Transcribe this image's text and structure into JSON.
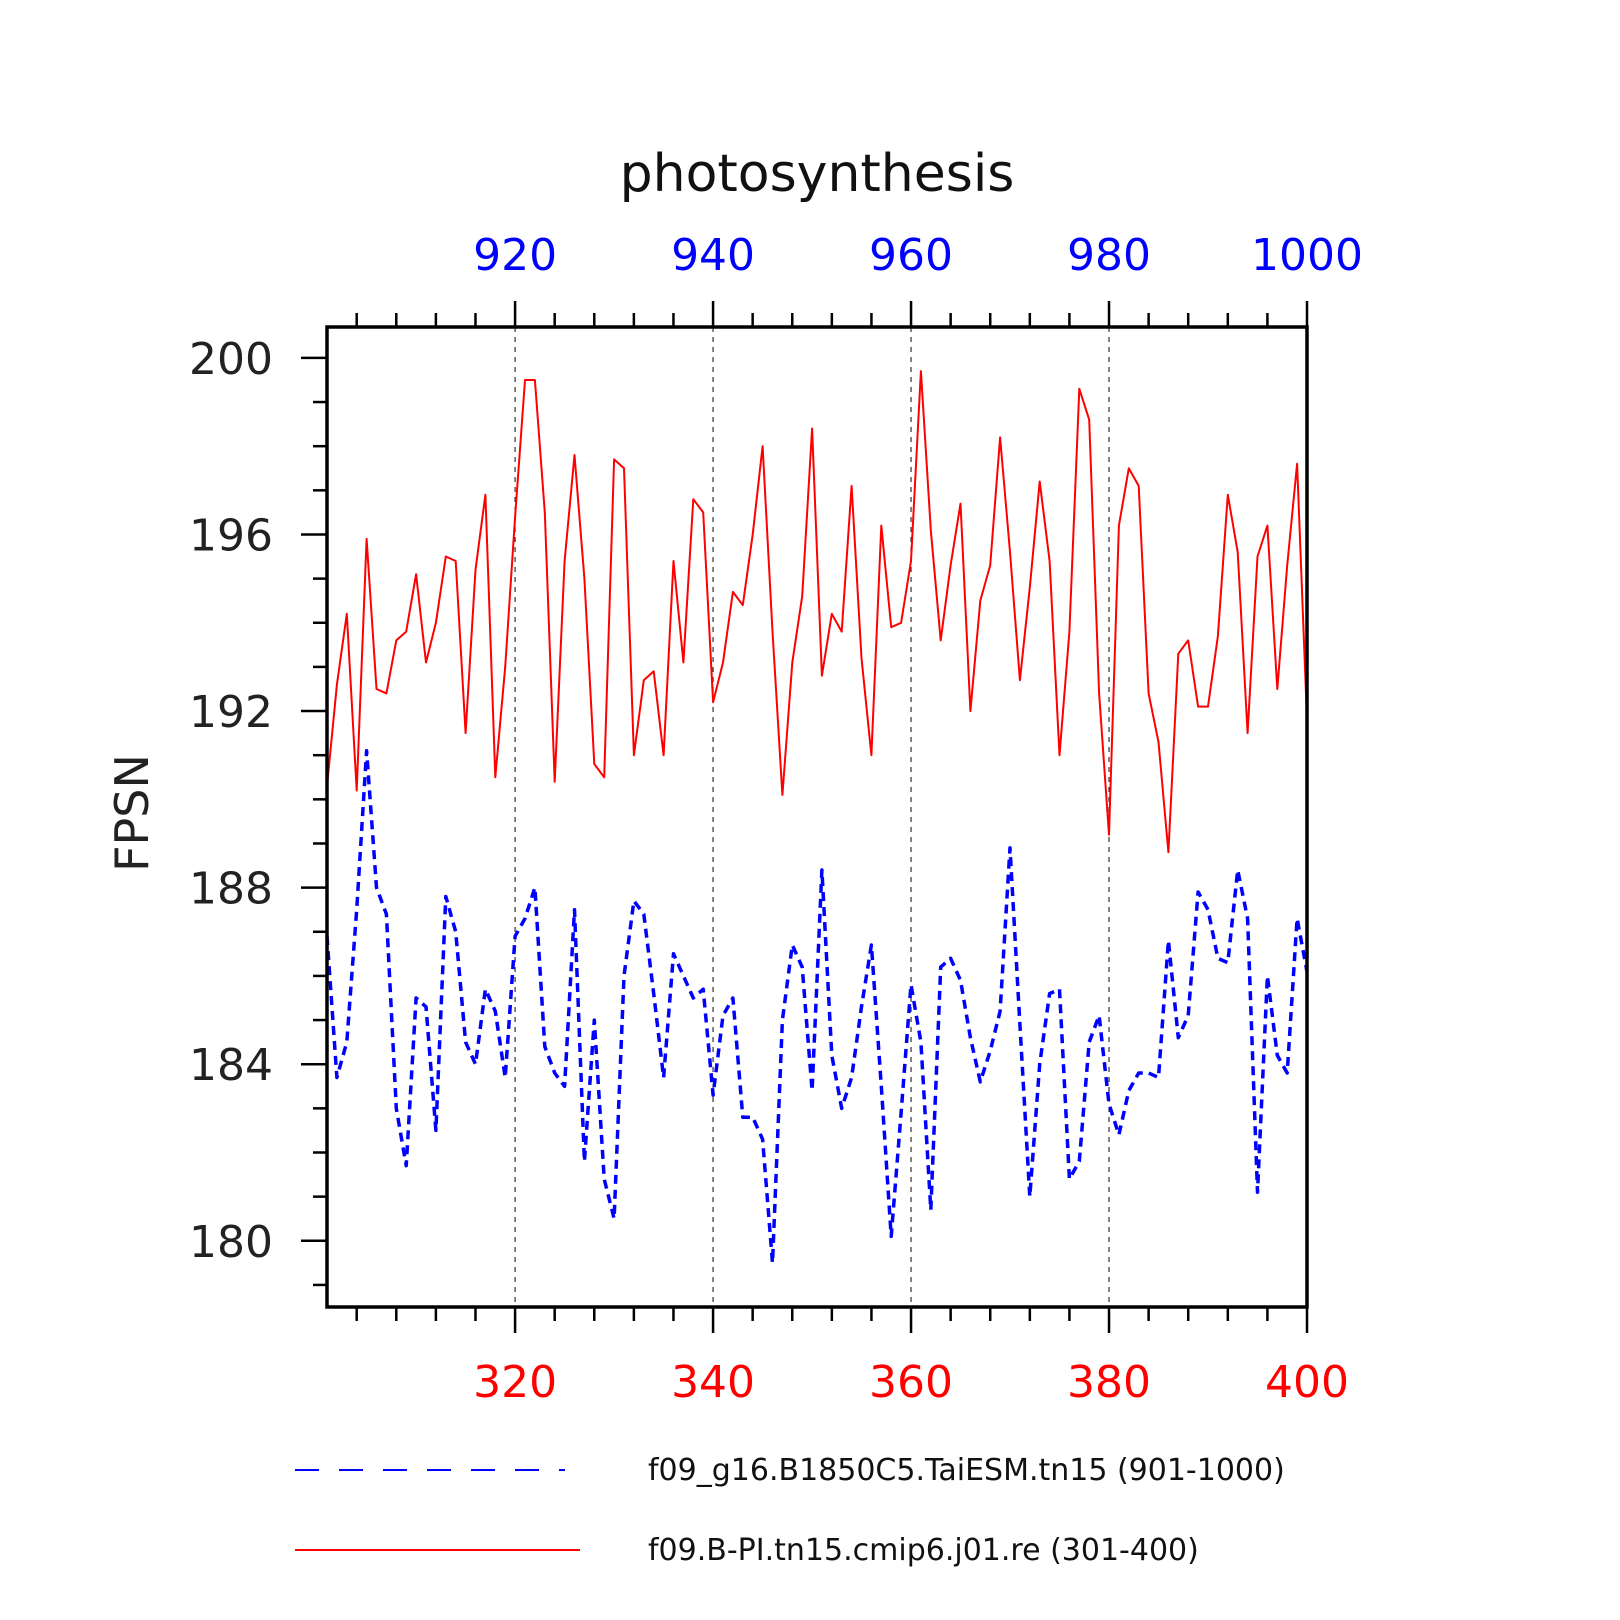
{
  "chart_data": {
    "type": "line",
    "title": "photosynthesis",
    "ylabel": "FPSN",
    "ylim": [
      178.5,
      200.7
    ],
    "yticks": [
      180,
      184,
      188,
      192,
      196,
      200
    ],
    "y_minor_step": 1,
    "x_bottom": {
      "range": [
        301,
        400
      ],
      "ticks": [
        320,
        340,
        360,
        380,
        400
      ],
      "minor_step": 4,
      "color": "#ff0000"
    },
    "x_top": {
      "range": [
        901,
        1000
      ],
      "ticks": [
        920,
        940,
        960,
        980,
        1000
      ],
      "minor_step": 4,
      "color": "#0000ff"
    },
    "vgrid": [
      320,
      340,
      360,
      380
    ],
    "series": [
      {
        "name": "f09.B-PI.tn15.cmip6.j01.re (301-400)",
        "axis": "bottom",
        "color": "#ff0000",
        "style": "solid",
        "x_start": 301,
        "values": [
          190.3,
          192.6,
          194.2,
          190.2,
          195.9,
          192.5,
          192.4,
          193.6,
          193.8,
          195.1,
          193.1,
          194.0,
          195.5,
          195.4,
          191.5,
          195.2,
          196.9,
          190.5,
          193.0,
          196.4,
          199.5,
          199.5,
          196.5,
          190.4,
          195.4,
          197.8,
          195.0,
          190.8,
          190.5,
          197.7,
          197.5,
          191.0,
          192.7,
          192.9,
          191.0,
          195.4,
          193.1,
          196.8,
          196.5,
          192.2,
          193.1,
          194.7,
          194.4,
          196.0,
          198.0,
          193.8,
          190.1,
          193.1,
          194.6,
          198.4,
          192.8,
          194.2,
          193.8,
          197.1,
          193.2,
          191.0,
          196.2,
          193.9,
          194.0,
          195.4,
          199.7,
          196.1,
          193.6,
          195.3,
          196.7,
          192.0,
          194.5,
          195.3,
          198.2,
          195.6,
          192.7,
          194.8,
          197.2,
          195.4,
          191.0,
          193.8,
          199.3,
          198.6,
          192.4,
          189.2,
          196.2,
          197.5,
          197.1,
          192.4,
          191.3,
          188.8,
          193.3,
          193.6,
          192.1,
          192.1,
          193.7,
          196.9,
          195.6,
          191.5,
          195.5,
          196.2,
          192.5,
          195.3,
          197.6,
          191.8
        ]
      },
      {
        "name": "f09_g16.B1850C5.TaiESM.tn15 (901-1000)",
        "axis": "top",
        "color": "#0000ff",
        "style": "dashed",
        "x_start": 901,
        "values": [
          186.9,
          183.7,
          184.5,
          187.5,
          191.1,
          188.0,
          187.4,
          183.0,
          181.7,
          185.5,
          185.3,
          182.5,
          187.8,
          187.0,
          184.5,
          184.0,
          185.7,
          185.2,
          183.7,
          186.9,
          187.3,
          188.0,
          184.4,
          183.8,
          183.5,
          187.5,
          181.8,
          185.0,
          181.4,
          180.5,
          186.0,
          187.7,
          187.4,
          185.6,
          183.7,
          186.5,
          186.0,
          185.5,
          185.7,
          183.3,
          185.1,
          185.5,
          182.8,
          182.8,
          182.3,
          179.5,
          185.0,
          186.7,
          186.2,
          183.4,
          188.4,
          184.2,
          183.0,
          183.7,
          185.3,
          186.7,
          183.5,
          180.1,
          182.9,
          185.8,
          184.5,
          180.7,
          186.2,
          186.4,
          185.9,
          184.6,
          183.6,
          184.3,
          185.2,
          188.9,
          184.9,
          181.0,
          184.0,
          185.6,
          185.7,
          181.4,
          181.8,
          184.5,
          185.1,
          183.1,
          182.4,
          183.4,
          183.8,
          183.8,
          183.7,
          186.8,
          184.6,
          185.1,
          187.9,
          187.5,
          186.4,
          186.3,
          188.4,
          187.3,
          181.1,
          186.0,
          184.2,
          183.8,
          187.3,
          186.1
        ]
      }
    ],
    "legend": {
      "placement": "bottom",
      "order": [
        1,
        0
      ]
    }
  }
}
